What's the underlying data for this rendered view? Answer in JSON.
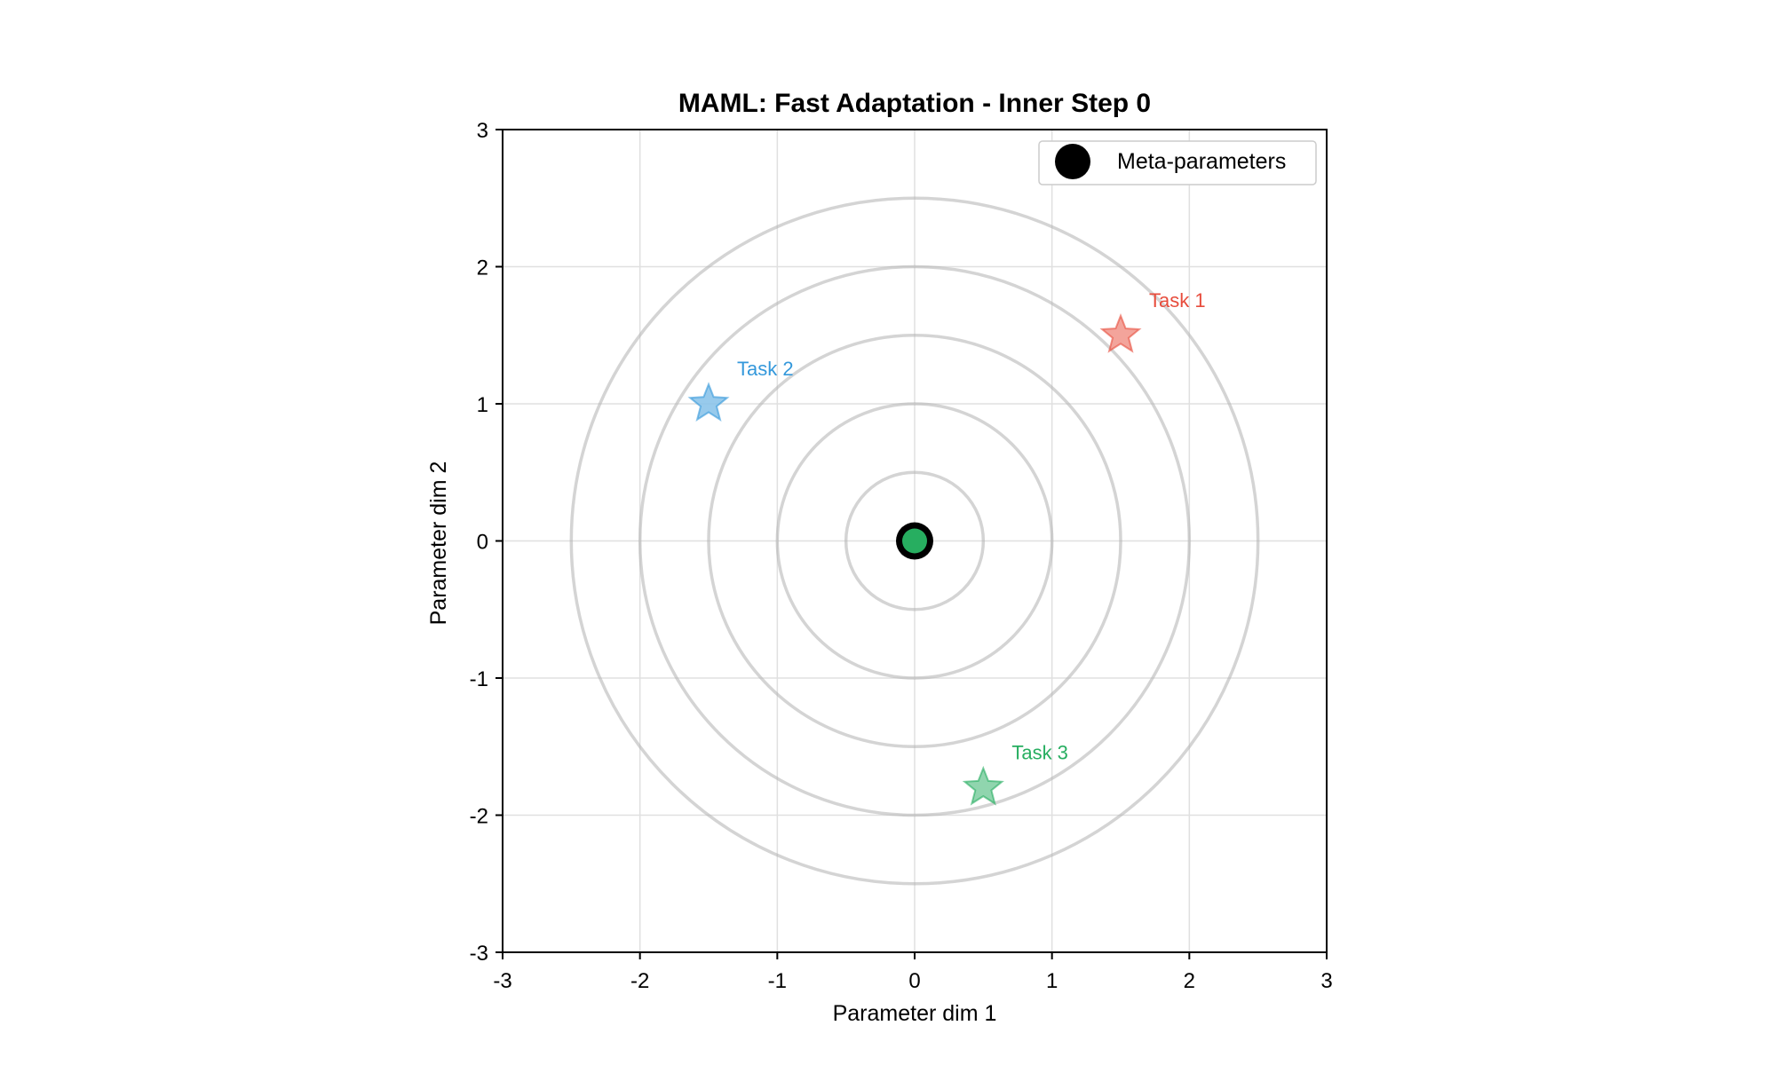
{
  "chart_data": {
    "type": "scatter",
    "title": "MAML: Fast Adaptation - Inner Step 0",
    "xlabel": "Parameter dim 1",
    "ylabel": "Parameter dim 2",
    "xlim": [
      -3,
      3
    ],
    "ylim": [
      -3,
      3
    ],
    "xticks": [
      -3,
      -2,
      -1,
      0,
      1,
      2,
      3
    ],
    "yticks": [
      -3,
      -2,
      -1,
      0,
      1,
      2,
      3
    ],
    "xtick_labels": [
      "-3",
      "-2",
      "-1",
      "0",
      "1",
      "2",
      "3"
    ],
    "ytick_labels": [
      "-3",
      "-2",
      "-1",
      "0",
      "1",
      "2",
      "3"
    ],
    "grid": true,
    "aspect": "equal",
    "contours": {
      "center": [
        0,
        0
      ],
      "radii": [
        0.5,
        1.0,
        1.5,
        2.0,
        2.5
      ],
      "color": "#b0b0b0"
    },
    "meta_parameters": {
      "name": "Meta-parameters",
      "x": 0,
      "y": 0,
      "color": "#000000",
      "inner_color": "#27ae60"
    },
    "tasks": [
      {
        "label": "Task 1",
        "x": 1.5,
        "y": 1.5,
        "color": "#e74c3c",
        "fill": "#f1948a"
      },
      {
        "label": "Task 2",
        "x": -1.5,
        "y": 1.0,
        "color": "#3498db",
        "fill": "#85c1e9"
      },
      {
        "label": "Task 3",
        "x": 0.5,
        "y": -1.8,
        "color": "#27ae60",
        "fill": "#7dcea0"
      }
    ],
    "legend": {
      "placement": "top-right",
      "entries": [
        "Meta-parameters"
      ]
    }
  }
}
